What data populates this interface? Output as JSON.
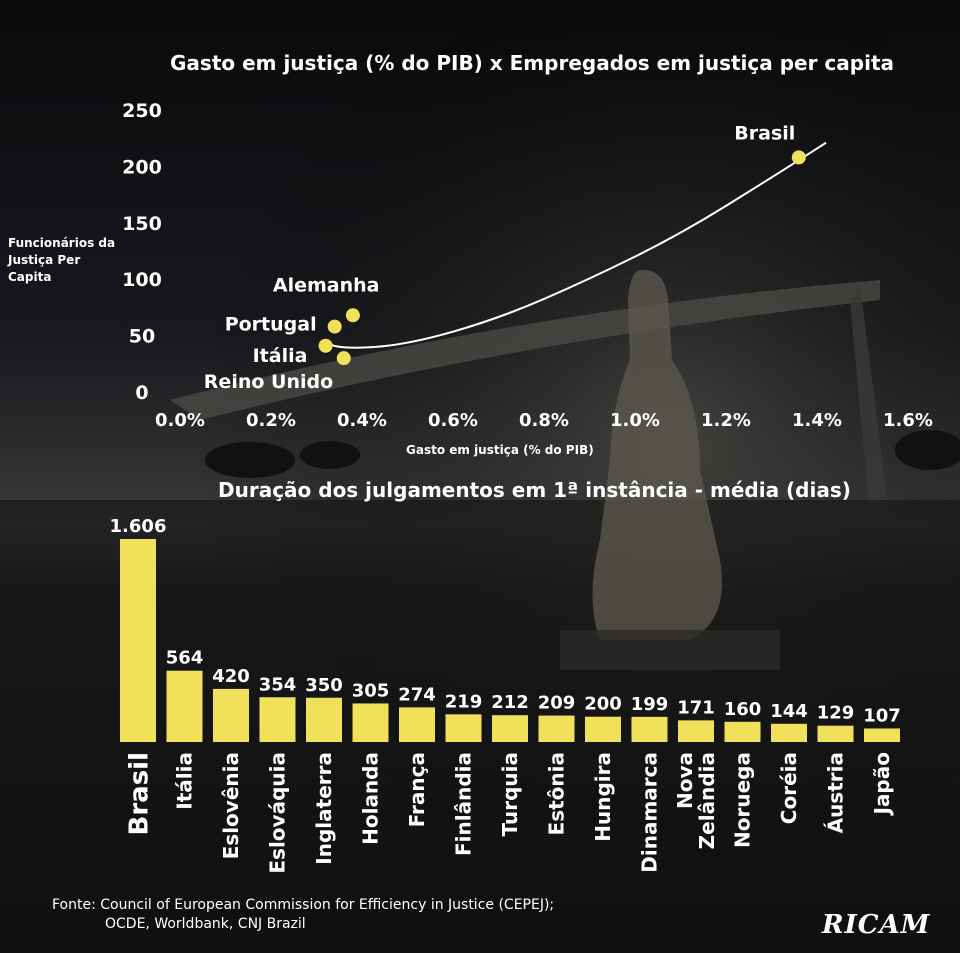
{
  "background": "photo of a courthouse with a blindfolded statue of Justice at dusk, darkened",
  "colors": {
    "accent": "#f0e05a",
    "text": "#ffffff",
    "background": "#000000"
  },
  "chart_data": [
    {
      "type": "scatter",
      "title": "Gasto em justiça (% do PIB) x Empregados em justiça per capita",
      "xlabel": "Gasto em justiça (% do PIB)",
      "ylabel": "Funcionários da Justiça Per Capita",
      "xlim": [
        0.0,
        1.6
      ],
      "ylim": [
        0,
        250
      ],
      "x_ticks": [
        "0.0%",
        "0.2%",
        "0.4%",
        "0.6%",
        "0.8%",
        "1.0%",
        "1.2%",
        "1.4%",
        "1.6%"
      ],
      "y_ticks": [
        "0",
        "50",
        "100",
        "150",
        "200",
        "250"
      ],
      "grid": false,
      "trendline": true,
      "points": [
        {
          "label": "Brasil",
          "x": 1.36,
          "y": 208
        },
        {
          "label": "Alemanha",
          "x": 0.38,
          "y": 68
        },
        {
          "label": "Portugal",
          "x": 0.34,
          "y": 58
        },
        {
          "label": "Itália",
          "x": 0.32,
          "y": 41
        },
        {
          "label": "Reino Unido",
          "x": 0.36,
          "y": 30
        }
      ]
    },
    {
      "type": "bar",
      "title": "Duração dos julgamentos em 1ª instância - média (dias)",
      "categories": [
        "Brasil",
        "Itália",
        "Eslovênia",
        "Eslováquia",
        "Inglaterra",
        "Holanda",
        "França",
        "Finlândia",
        "Turquia",
        "Estônia",
        "Hungira",
        "Dinamarca",
        "Nova Zelândia",
        "Noruega",
        "Coréia",
        "Áustria",
        "Japão"
      ],
      "values": [
        1606,
        564,
        420,
        354,
        350,
        305,
        274,
        219,
        212,
        209,
        200,
        199,
        171,
        160,
        144,
        129,
        107
      ],
      "value_labels": [
        "1.606",
        "564",
        "420",
        "354",
        "350",
        "305",
        "274",
        "219",
        "212",
        "209",
        "200",
        "199",
        "171",
        "160",
        "144",
        "129",
        "107"
      ]
    }
  ],
  "source": {
    "line1": "Fonte: Council of European Commission for Efficiency in Justice (CEPEJ);",
    "line2": "OCDE, Worldbank, CNJ Brazil"
  },
  "logo_text": "RICAM"
}
